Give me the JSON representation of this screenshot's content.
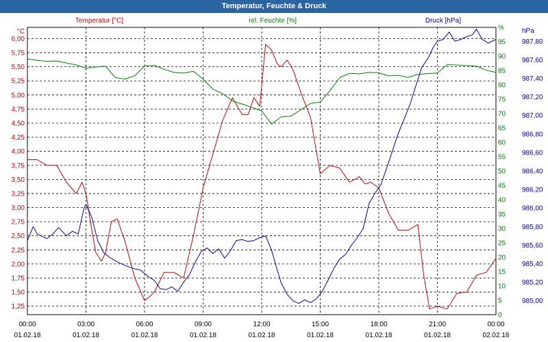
{
  "window": {
    "title": "Temperatur, Feuchte & Druck"
  },
  "colors": {
    "temperature": "#cc0000",
    "humidity": "#008000",
    "pressure": "#0000aa",
    "titlebar": "#2b65a1"
  },
  "chart_data": {
    "type": "line",
    "title": "Temperatur, Feuchte & Druck",
    "grid": true,
    "xlim": [
      0,
      24
    ],
    "x_tick_labels": [
      [
        "00:00",
        "01.02.18"
      ],
      [
        "03:00",
        "01.02.18"
      ],
      [
        "06:00",
        "01.02.18"
      ],
      [
        "09:00",
        "01.02.18"
      ],
      [
        "12:00",
        "01.02.18"
      ],
      [
        "15:00",
        "01.02.18"
      ],
      [
        "18:00",
        "01.02.18"
      ],
      [
        "21:00",
        "01.02.18"
      ],
      [
        "00:00",
        "02.02.18"
      ]
    ],
    "axes": {
      "left": {
        "unit": "°C",
        "ylim": [
          1.1,
          6.2
        ],
        "ticks": [
          "1,25",
          "1,50",
          "1,75",
          "2,00",
          "2,25",
          "2,50",
          "2,75",
          "3,00",
          "3,25",
          "3,50",
          "3,75",
          "4,00",
          "4,25",
          "4,50",
          "4,75",
          "5,00",
          "5,25",
          "5,50",
          "5,75",
          "6,00"
        ]
      },
      "middle": {
        "unit": "%",
        "ylim": [
          0,
          100
        ],
        "ticks": [
          "0",
          "5",
          "10",
          "15",
          "20",
          "25",
          "30",
          "35",
          "40",
          "45",
          "50",
          "55",
          "60",
          "65",
          "70",
          "75",
          "80",
          "85",
          "90",
          "95",
          "%"
        ]
      },
      "right": {
        "unit": "hPa",
        "ylim": [
          984.85,
          987.95
        ],
        "ticks": [
          "985,00",
          "985,20",
          "985,40",
          "985,60",
          "985,80",
          "986,00",
          "986,20",
          "986,40",
          "986,60",
          "986,80",
          "987,00",
          "987,20",
          "987,40",
          "987,60",
          "987,80",
          "hPa"
        ]
      }
    },
    "series": [
      {
        "name": "Temperatur [°C]",
        "axis": "left",
        "x": [
          0,
          0.5,
          1,
          1.5,
          2,
          2.5,
          2.8,
          3,
          3.3,
          3.5,
          3.8,
          4,
          4.3,
          4.6,
          5,
          5.5,
          6,
          6.2,
          6.5,
          7,
          7.5,
          8,
          8.5,
          9,
          9.5,
          10,
          10.5,
          11,
          11.3,
          11.6,
          11.9,
          12.2,
          12.5,
          12.8,
          13,
          13.3,
          13.6,
          14,
          14.5,
          15,
          15.5,
          16,
          16.5,
          17,
          17.3,
          17.6,
          18,
          18.5,
          19,
          19.5,
          20,
          20.3,
          20.6,
          21,
          21.5,
          22,
          22.5,
          23,
          23.5,
          24
        ],
        "y": [
          3.85,
          3.85,
          3.75,
          3.75,
          3.45,
          3.25,
          3.45,
          3.25,
          2.6,
          2.2,
          2.05,
          2.2,
          2.75,
          2.8,
          2.4,
          1.75,
          1.35,
          1.4,
          1.5,
          1.85,
          1.85,
          1.75,
          2.5,
          3.35,
          3.95,
          4.55,
          4.95,
          4.65,
          4.65,
          4.95,
          4.8,
          5.9,
          5.8,
          5.55,
          5.5,
          5.62,
          5.45,
          5.05,
          4.6,
          3.6,
          3.75,
          3.7,
          3.45,
          3.55,
          3.42,
          3.45,
          3.35,
          2.9,
          2.6,
          2.6,
          2.7,
          1.8,
          1.2,
          1.25,
          1.2,
          1.48,
          1.5,
          1.8,
          1.85,
          2.1
        ]
      },
      {
        "name": "rel. Feuchte [%]",
        "axis": "middle",
        "x": [
          0,
          0.5,
          1,
          1.5,
          2,
          2.5,
          3,
          3.5,
          4,
          4.5,
          5,
          5.5,
          6,
          6.5,
          7,
          7.5,
          8,
          8.5,
          9,
          9.5,
          10,
          10.5,
          11,
          11.5,
          12,
          12.5,
          13,
          13.5,
          14,
          14.5,
          15,
          15.5,
          16,
          16.5,
          17,
          17.5,
          18,
          18.5,
          19,
          19.5,
          20,
          20.5,
          21,
          21.5,
          22,
          22.5,
          23,
          23.5,
          24
        ],
        "y": [
          89,
          88.5,
          88.2,
          88.3,
          87.6,
          86.9,
          85.8,
          86.2,
          86.5,
          82.5,
          82,
          83.2,
          86.6,
          86.7,
          85.4,
          84.3,
          84.1,
          84.7,
          82,
          78.5,
          76.9,
          74.4,
          73.3,
          72.1,
          70.9,
          66.4,
          68.8,
          69.1,
          71.3,
          73.5,
          74,
          78,
          82.5,
          84,
          83.8,
          84.3,
          84.2,
          83.1,
          83.3,
          82.6,
          83.6,
          83.9,
          84.1,
          87,
          86.9,
          86.7,
          86.5,
          85.1,
          84.3
        ]
      },
      {
        "name": "Druck [hPa]",
        "axis": "right",
        "x": [
          0,
          0.3,
          0.5,
          1,
          1.3,
          1.6,
          2,
          2.3,
          2.6,
          2.9,
          3,
          3.3,
          3.6,
          3.9,
          4.2,
          4.6,
          5,
          5.4,
          5.8,
          6.2,
          6.5,
          6.8,
          7.1,
          7.4,
          7.7,
          8,
          8.3,
          8.6,
          8.9,
          9.2,
          9.5,
          9.8,
          10.1,
          10.4,
          10.7,
          11,
          11.3,
          11.6,
          11.9,
          12.2,
          12.5,
          12.8,
          13,
          13.3,
          13.6,
          13.9,
          14.2,
          14.5,
          14.8,
          15.1,
          15.4,
          15.7,
          16,
          16.3,
          16.6,
          16.9,
          17.2,
          17.5,
          17.8,
          18.1,
          18.4,
          18.7,
          19,
          19.3,
          19.6,
          19.9,
          20.2,
          20.5,
          20.8,
          21,
          21.3,
          21.6,
          21.9,
          22.2,
          22.5,
          22.8,
          23,
          23.3,
          23.6,
          24
        ],
        "y": [
          985.65,
          985.8,
          985.72,
          985.67,
          985.72,
          985.79,
          985.7,
          985.75,
          985.72,
          986.0,
          986.04,
          985.9,
          985.65,
          985.52,
          985.47,
          985.42,
          985.38,
          985.35,
          985.33,
          985.26,
          985.22,
          985.13,
          985.12,
          985.15,
          985.1,
          985.2,
          985.28,
          985.42,
          985.53,
          985.57,
          985.51,
          985.56,
          985.46,
          985.54,
          985.65,
          985.66,
          985.64,
          985.65,
          985.68,
          985.7,
          985.55,
          985.33,
          985.19,
          985.07,
          985.0,
          984.97,
          985.01,
          984.98,
          985.02,
          985.1,
          985.22,
          985.35,
          985.45,
          985.5,
          985.6,
          985.68,
          985.78,
          986.05,
          986.16,
          986.25,
          986.43,
          986.62,
          986.81,
          986.96,
          987.12,
          987.32,
          987.52,
          987.61,
          987.74,
          987.8,
          987.82,
          987.9,
          987.8,
          987.82,
          987.85,
          987.87,
          987.93,
          987.82,
          987.78,
          987.82
        ]
      }
    ]
  }
}
